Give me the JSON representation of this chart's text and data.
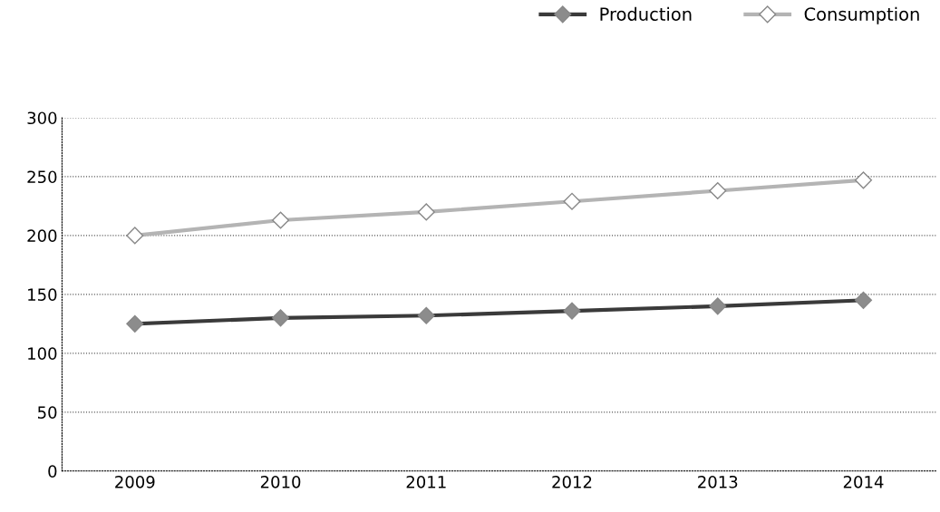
{
  "chart_data": {
    "type": "line",
    "categories": [
      "2009",
      "2010",
      "2011",
      "2012",
      "2013",
      "2014"
    ],
    "series": [
      {
        "name": "Production",
        "color": "#3a3a3a",
        "values": [
          125,
          130,
          132,
          136,
          140,
          145
        ]
      },
      {
        "name": "Consumption",
        "color": "#b4b4b4",
        "values": [
          200,
          213,
          220,
          229,
          238,
          247
        ]
      }
    ],
    "ylim": [
      0,
      300
    ],
    "yticks": [
      0,
      50,
      100,
      150,
      200,
      250,
      300
    ],
    "grid": "y",
    "legend": "top right",
    "marker": "diamond",
    "line_style": "solid"
  }
}
